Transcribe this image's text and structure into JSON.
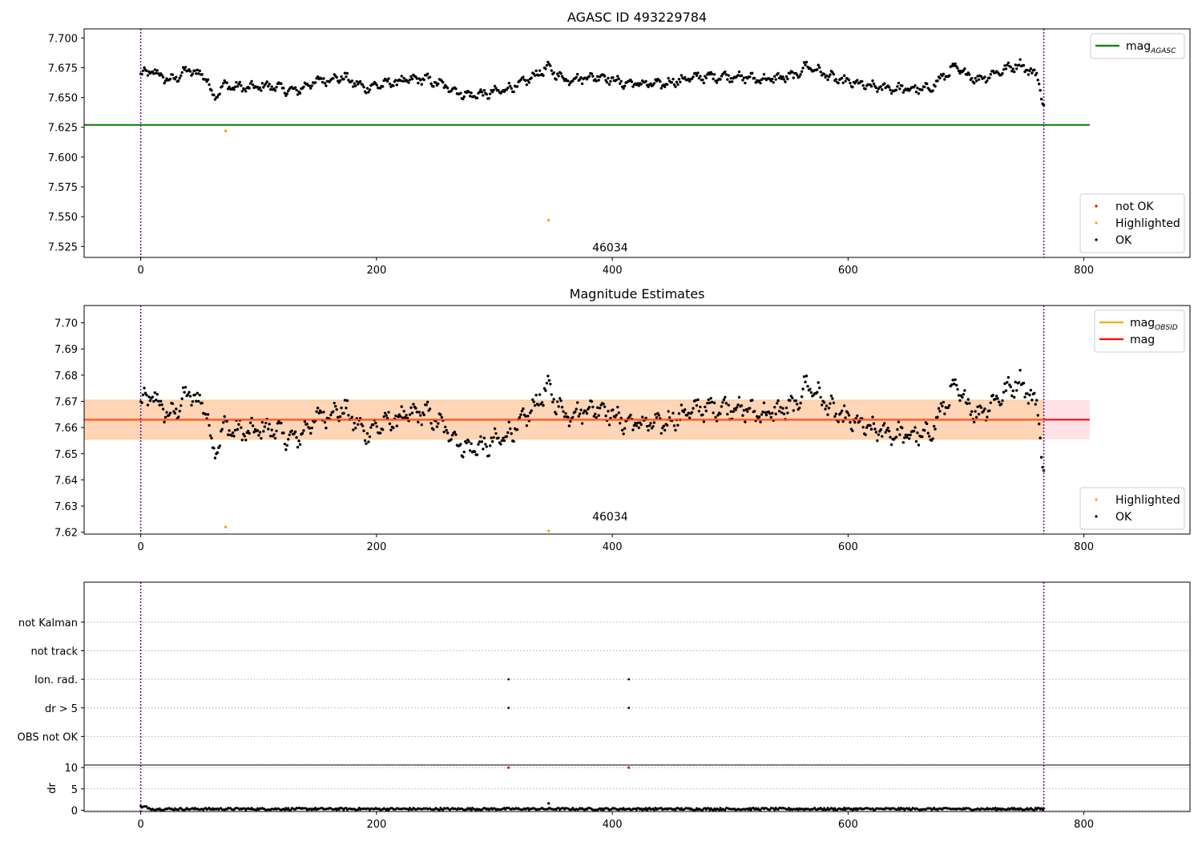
{
  "chart_data": [
    {
      "type": "scatter",
      "title": "AGASC ID 493229784",
      "xlim": [
        -48,
        890
      ],
      "ylim": [
        7.5158,
        7.7076
      ],
      "x_ticks": [
        0,
        200,
        400,
        600,
        800
      ],
      "x_tick_labels": [
        "0",
        "200",
        "400",
        "600",
        "800"
      ],
      "y_ticks": [
        7.525,
        7.55,
        7.575,
        7.6,
        7.625,
        7.65,
        7.675,
        7.7
      ],
      "y_tick_labels": [
        "7.525",
        "7.550",
        "7.575",
        "7.600",
        "7.625",
        "7.650",
        "7.675",
        "7.700"
      ],
      "vlines": [
        0,
        766
      ],
      "hlines": [
        {
          "name": "mag_AGASC",
          "y": 7.627,
          "x_range": [
            -48,
            805
          ],
          "color": "#008000"
        }
      ],
      "annotations": [
        {
          "text": "46034",
          "x": 383,
          "y": 7.521
        }
      ],
      "legends": [
        {
          "position": "upper-right",
          "entries": [
            {
              "label": "mag",
              "subscript": "AGASC",
              "kind": "line",
              "color": "#008000"
            }
          ]
        },
        {
          "position": "lower-right",
          "entries": [
            {
              "label": "not OK",
              "kind": "marker",
              "color": "#ff0000"
            },
            {
              "label": "Highlighted",
              "kind": "marker",
              "color": "#ffa500"
            },
            {
              "label": "OK",
              "kind": "marker",
              "color": "#000000"
            }
          ]
        }
      ],
      "series": [
        {
          "name": "OK",
          "color": "#000000",
          "kind": "random_walk",
          "n": 766,
          "x_start": 0,
          "x_end": 766,
          "anchors_x": [
            0,
            10,
            25,
            40,
            55,
            62,
            70,
            90,
            110,
            130,
            150,
            172,
            190,
            215,
            240,
            260,
            275,
            295,
            320,
            345,
            360,
            390,
            410,
            440,
            470,
            500,
            530,
            555,
            565,
            590,
            620,
            650,
            668,
            690,
            710,
            745,
            760,
            766
          ],
          "anchors_y": [
            7.669,
            7.672,
            7.664,
            7.673,
            7.668,
            7.65,
            7.66,
            7.658,
            7.66,
            7.655,
            7.664,
            7.667,
            7.658,
            7.663,
            7.666,
            7.659,
            7.652,
            7.653,
            7.66,
            7.675,
            7.665,
            7.668,
            7.662,
            7.661,
            7.667,
            7.668,
            7.665,
            7.668,
            7.677,
            7.665,
            7.659,
            7.657,
            7.657,
            7.675,
            7.665,
            7.678,
            7.669,
            7.645
          ],
          "jitter": 0.004
        },
        {
          "name": "Highlighted",
          "color": "#ffa500",
          "kind": "points",
          "x": [
            72,
            346
          ],
          "y": [
            7.622,
            7.547
          ]
        }
      ]
    },
    {
      "type": "scatter",
      "title": "Magnitude Estimates",
      "xlim": [
        -48,
        890
      ],
      "ylim": [
        7.6193,
        7.7066
      ],
      "x_ticks": [
        0,
        200,
        400,
        600,
        800
      ],
      "x_tick_labels": [
        "0",
        "200",
        "400",
        "600",
        "800"
      ],
      "y_ticks": [
        7.62,
        7.63,
        7.64,
        7.65,
        7.66,
        7.67,
        7.68,
        7.69,
        7.7
      ],
      "y_tick_labels": [
        "7.62",
        "7.63",
        "7.64",
        "7.65",
        "7.66",
        "7.67",
        "7.68",
        "7.69",
        "7.70"
      ],
      "vlines": [
        0,
        766
      ],
      "hlines": [
        {
          "name": "mag",
          "y": 7.663,
          "x_range": [
            -48,
            805
          ],
          "color": "#ff0000"
        }
      ],
      "bands": [
        {
          "y_range": [
            7.6555,
            7.6705
          ],
          "x_range": [
            -48,
            805
          ],
          "color": "#ffb6c1",
          "opacity": 0.4
        },
        {
          "y_range": [
            7.6555,
            7.6705
          ],
          "x_range": [
            -48,
            766
          ],
          "color": "#ffa500",
          "opacity": 0.2
        }
      ],
      "annotations": [
        {
          "text": "46034",
          "x": 383,
          "y": 7.6245
        }
      ],
      "legends": [
        {
          "position": "upper-right",
          "entries": [
            {
              "label": "mag",
              "subscript": "OBSID",
              "kind": "line",
              "color": "#ffa500"
            },
            {
              "label": "mag",
              "kind": "line",
              "color": "#ff0000"
            }
          ]
        },
        {
          "position": "lower-right",
          "entries": [
            {
              "label": "Highlighted",
              "kind": "marker",
              "color": "#ffa500"
            },
            {
              "label": "OK",
              "kind": "marker",
              "color": "#000000"
            }
          ]
        }
      ],
      "series": [
        {
          "name": "OK",
          "color": "#000000",
          "kind": "same_as_panel_0"
        },
        {
          "name": "Highlighted",
          "color": "#ffa500",
          "kind": "points",
          "x": [
            72,
            346
          ],
          "y": [
            7.622,
            7.6205
          ]
        }
      ]
    },
    {
      "type": "scatter",
      "xlim": [
        -48,
        890
      ],
      "ylim": [
        0,
        6.4
      ],
      "y_ticks": [
        1,
        2,
        3,
        4,
        5
      ],
      "y_tick_labels": [
        "OBS not OK",
        "dr > 5",
        "Ion. rad.",
        "not track",
        "not Kalman"
      ],
      "grid": "horizontal-dotted",
      "vlines": [
        0,
        766
      ],
      "series": [
        {
          "name": "dr > 5",
          "color": "#000000",
          "kind": "points",
          "x": [
            312,
            414
          ],
          "y": [
            2,
            2
          ]
        },
        {
          "name": "Ion. rad.",
          "color": "#000000",
          "kind": "points",
          "x": [
            312,
            414
          ],
          "y": [
            3,
            3
          ]
        }
      ]
    },
    {
      "type": "scatter",
      "xlim": [
        -48,
        890
      ],
      "ylim": [
        -0.3,
        10.6
      ],
      "ylabel": "dr",
      "x_ticks": [
        0,
        200,
        400,
        600,
        800
      ],
      "x_tick_labels": [
        "0",
        "200",
        "400",
        "600",
        "800"
      ],
      "y_ticks": [
        0,
        5,
        10
      ],
      "y_tick_labels": [
        "0",
        "5",
        "10"
      ],
      "grid": "horizontal-dotted",
      "vlines": [
        0,
        766
      ],
      "series": [
        {
          "name": "OK",
          "color": "#000000",
          "kind": "noise",
          "n": 766,
          "x_start": 0,
          "x_end": 766,
          "base": 0.3,
          "jitter": 0.25
        },
        {
          "name": "not OK",
          "color": "#ff0000",
          "kind": "points",
          "x": [
            312,
            414
          ],
          "y": [
            10,
            10
          ]
        },
        {
          "name": "outlier",
          "color": "#000000",
          "kind": "points",
          "x": [
            346
          ],
          "y": [
            1.6
          ]
        }
      ]
    }
  ]
}
